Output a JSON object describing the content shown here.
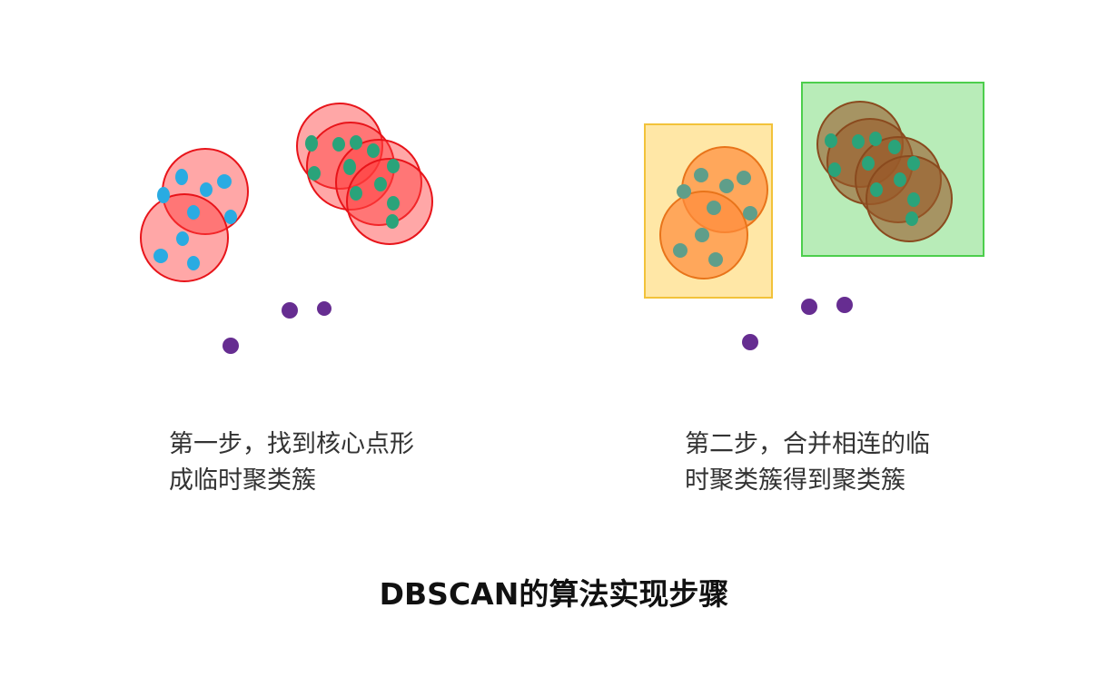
{
  "step1": {
    "line1": "第一步，找到核心点形",
    "line2": "成临时聚类簇"
  },
  "step2": {
    "line1": "第二步，合并相连的临",
    "line2": "时聚类簇得到聚类簇"
  },
  "title": "DBSCAN的算法实现步骤",
  "colors": {
    "core_circle_fill": "#ff3b3b",
    "core_circle_stroke": "#e8141a",
    "blue_point": "#29abe2",
    "green_point": "#2aa37a",
    "noise_point": "#662d91",
    "orange_circle_fill": "#ff8c3c",
    "brown_circle_fill": "#9a5a2a",
    "yellow_box_fill": "#ffe7a6",
    "yellow_box_stroke": "#f2c23a",
    "green_box_fill": "#b8ecb8",
    "green_box_stroke": "#4cce4c"
  }
}
